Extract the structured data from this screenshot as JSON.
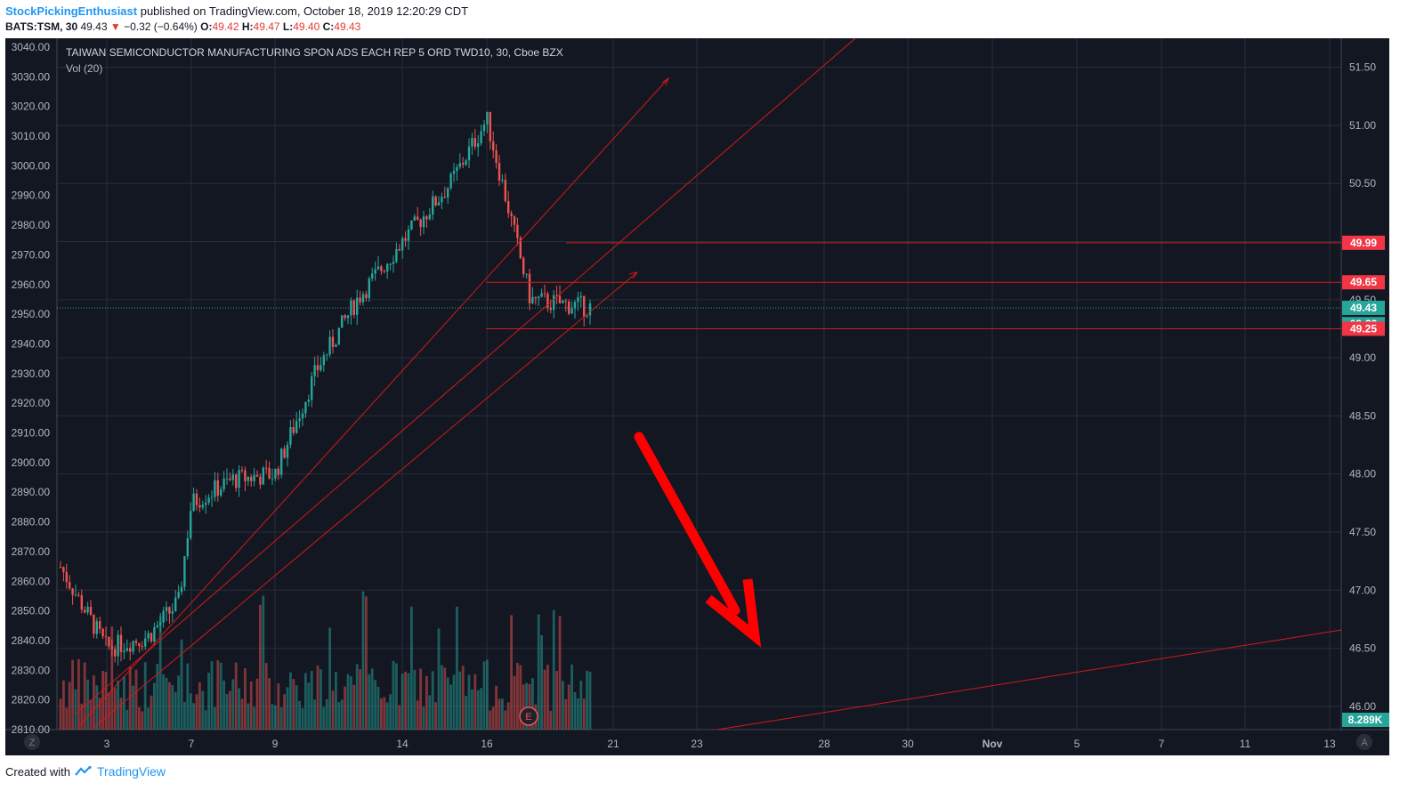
{
  "header": {
    "author": "StockPickingEnthusiast",
    "published_text": "published on TradingView.com, October 18, 2019 12:20:29 CDT",
    "symbol": "BATS:TSM, 30",
    "last": "49.43",
    "down_arrow": "▼",
    "change": "−0.32 (−0.64%)",
    "o_label": "O:",
    "o_value": "49.42",
    "h_label": "H:",
    "h_value": "49.47",
    "l_label": "L:",
    "l_value": "49.40",
    "c_label": "C:",
    "c_value": "49.43"
  },
  "footer": {
    "created_with": "Created with",
    "brand": "TradingView"
  },
  "chart_data": {
    "type": "candlestick",
    "title": "TAIWAN SEMICONDUCTOR MANUFACTURING SPON ADS EACH REP 5 ORD TWD10, 30, Cboe BZX",
    "volume_label": "Vol (20)",
    "x_ticks": [
      "3",
      "7",
      "9",
      "14",
      "16",
      "21",
      "23",
      "28",
      "30",
      "Nov",
      "5",
      "7",
      "11",
      "13"
    ],
    "left_axis": {
      "ticks": [
        "3040.00",
        "3030.00",
        "3020.00",
        "3010.00",
        "3000.00",
        "2990.00",
        "2980.00",
        "2970.00",
        "2960.00",
        "2950.00",
        "2940.00",
        "2930.00",
        "2920.00",
        "2910.00",
        "2900.00",
        "2890.00",
        "2880.00",
        "2870.00",
        "2860.00",
        "2850.00",
        "2840.00",
        "2830.00",
        "2820.00",
        "2810.00"
      ],
      "range": [
        2810,
        3043
      ]
    },
    "right_axis": {
      "ticks": [
        "51.50",
        "51.00",
        "50.50",
        "50.00",
        "49.50",
        "49.00",
        "48.50",
        "48.00",
        "47.50",
        "47.00",
        "46.50",
        "46.00"
      ],
      "range": [
        45.8,
        51.75
      ]
    },
    "price_tags": [
      {
        "label": "49.99",
        "value": 49.99,
        "color": "#f23645"
      },
      {
        "label": "49.65",
        "value": 49.65,
        "color": "#f23645"
      },
      {
        "label": "49.43",
        "value": 49.43,
        "color": "#26a69a"
      },
      {
        "label": "09:32",
        "value": 49.29,
        "color": "#26a69a"
      },
      {
        "label": "49.25",
        "value": 49.25,
        "color": "#f23645"
      }
    ],
    "volume_tag": "8.289K",
    "last_price": 49.43,
    "horizontal_levels": [
      49.99,
      49.65,
      49.25
    ],
    "earnings_marker": "E",
    "scale_buttons": {
      "left": "Z",
      "right": "A"
    },
    "price_path": [
      [
        "Oct 1",
        47.2
      ],
      [
        "Oct 2",
        46.5
      ],
      [
        "Oct 3",
        46.6
      ],
      [
        "Oct 4",
        46.9
      ],
      [
        "Oct 7",
        47.75
      ],
      [
        "Oct 8",
        47.95
      ],
      [
        "Oct 9",
        48.0
      ],
      [
        "Oct 10",
        48.9
      ],
      [
        "Oct 11",
        49.5
      ],
      [
        "Oct 14",
        50.0
      ],
      [
        "Oct 15",
        50.5
      ],
      [
        "Oct 16",
        51.05
      ],
      [
        "Oct 17",
        49.5
      ],
      [
        "Oct 18",
        49.43
      ]
    ],
    "colors": {
      "up": "#26a69a",
      "down": "#ef5350",
      "drawing": "#d11a1a",
      "arrow": "#ff0000",
      "background": "#131722"
    }
  }
}
